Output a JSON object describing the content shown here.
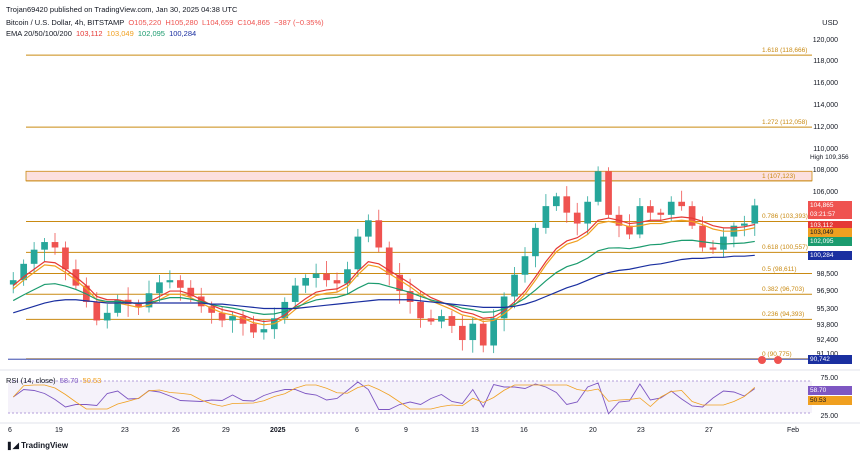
{
  "publisher_line": "Trojan69420 published on TradingView.com, Jan 30, 2025 04:38 UTC",
  "legend": {
    "symbol": "Bitcoin / U.S. Dollar, 4h, BITSTAMP",
    "O": "O105,220",
    "H": "H105,280",
    "L": "L104,659",
    "C": "C104,865",
    "change": "−387 (−0.35%)",
    "ema_label": "EMA 20/50/100/200",
    "ema_values": [
      "103,112",
      "103,049",
      "102,095",
      "100,284"
    ]
  },
  "currency": "USD",
  "price_axis": [
    "120,000",
    "118,000",
    "116,000",
    "114,000",
    "112,000",
    "110,000",
    "108,000",
    "106,000",
    "98,500",
    "96,900",
    "95,300",
    "93,800",
    "92,400",
    "91,100"
  ],
  "fib_levels": [
    {
      "label": "1.618 (118,666)",
      "price": 118666
    },
    {
      "label": "1.272 (112,058)",
      "price": 112058
    },
    {
      "label": "1 (107,123)",
      "price": 107123
    },
    {
      "label": "0.786 (103,393)",
      "price": 103393
    },
    {
      "label": "0.618 (100,557)",
      "price": 100557
    },
    {
      "label": "0.5 (98,611)",
      "price": 98611
    },
    {
      "label": "0.382 (96,703)",
      "price": 96703
    },
    {
      "label": "0.236 (94,393)",
      "price": 94393
    },
    {
      "label": "0 (90,775)",
      "price": 90775
    }
  ],
  "tags": {
    "high_label": "High",
    "high_value": "109,356",
    "last": "104,865",
    "countdown": "03:21:57",
    "ema20": "103,112",
    "ema50": "103,049",
    "ema100": "102,095",
    "ema200": "100,284",
    "low": "90,742"
  },
  "rsi": {
    "label": "RSI (14, close)",
    "value": "58.70",
    "ma": "50.53",
    "axis": [
      "75.00",
      "25.00"
    ]
  },
  "time_axis": [
    "6",
    "19",
    "23",
    "26",
    "29",
    "2025",
    "6",
    "9",
    "13",
    "16",
    "20",
    "23",
    "27",
    "Feb"
  ],
  "brand": "TradingView",
  "colors": {
    "up": "#26a69a",
    "down": "#ef5350",
    "ema20": "#e53935",
    "ema50": "#f0a020",
    "ema100": "#1b9b6e",
    "ema200": "#1a2fa0",
    "fib": "#c98a12"
  },
  "chart_data": {
    "type": "candlestick",
    "close_series": [
      98000,
      99500,
      100800,
      101500,
      101000,
      99000,
      97500,
      96000,
      94300,
      95000,
      96200,
      95800,
      95500,
      96800,
      97800,
      98000,
      97300,
      96500,
      95600,
      95000,
      94300,
      94700,
      94000,
      93200,
      93500,
      94500,
      96000,
      97500,
      98200,
      98600,
      98000,
      97700,
      99000,
      102000,
      103500,
      101000,
      98500,
      97000,
      96000,
      94500,
      94200,
      94700,
      93800,
      92500,
      94000,
      92000,
      94500,
      96500,
      98500,
      100200,
      102800,
      104800,
      105700,
      104200,
      103200,
      105200,
      108000,
      104000,
      103000,
      102200,
      104800,
      104200,
      104000,
      105200,
      104800,
      103000,
      101000,
      100800,
      102000,
      103000,
      103200,
      104865
    ],
    "ema20": [
      97500,
      98300,
      99000,
      99700,
      99600,
      99000,
      98300,
      97500,
      96500,
      96200,
      96200,
      96000,
      95800,
      96000,
      96500,
      97000,
      97000,
      96700,
      96200,
      95700,
      95300,
      95100,
      94800,
      94400,
      94200,
      94300,
      94800,
      95600,
      96300,
      96900,
      97100,
      97200,
      97700,
      98800,
      99700,
      99500,
      98900,
      98300,
      97700,
      97000,
      96400,
      96000,
      95600,
      95100,
      94900,
      94500,
      94600,
      95200,
      96000,
      97000,
      98300,
      99700,
      100900,
      101600,
      101900,
      102500,
      103500,
      103700,
      103500,
      103200,
      103300,
      103500,
      103500,
      103700,
      103800,
      103700,
      103400,
      103000,
      102800,
      102800,
      102900,
      103112
    ],
    "ema200": [
      95000,
      95300,
      95600,
      95900,
      96100,
      96200,
      96200,
      96100,
      96000,
      95900,
      95900,
      95900,
      95900,
      95900,
      95900,
      95900,
      95900,
      95900,
      95900,
      95800,
      95800,
      95700,
      95600,
      95500,
      95400,
      95400,
      95400,
      95400,
      95500,
      95600,
      95700,
      95800,
      95900,
      96000,
      96100,
      96200,
      96200,
      96200,
      96200,
      96100,
      96000,
      95900,
      95800,
      95700,
      95600,
      95500,
      95500,
      95500,
      95600,
      95800,
      96100,
      96500,
      96900,
      97300,
      97600,
      98000,
      98400,
      98700,
      98900,
      99000,
      99200,
      99400,
      99500,
      99700,
      99900,
      100000,
      100000,
      100100,
      100100,
      100200,
      100200,
      100284
    ]
  }
}
